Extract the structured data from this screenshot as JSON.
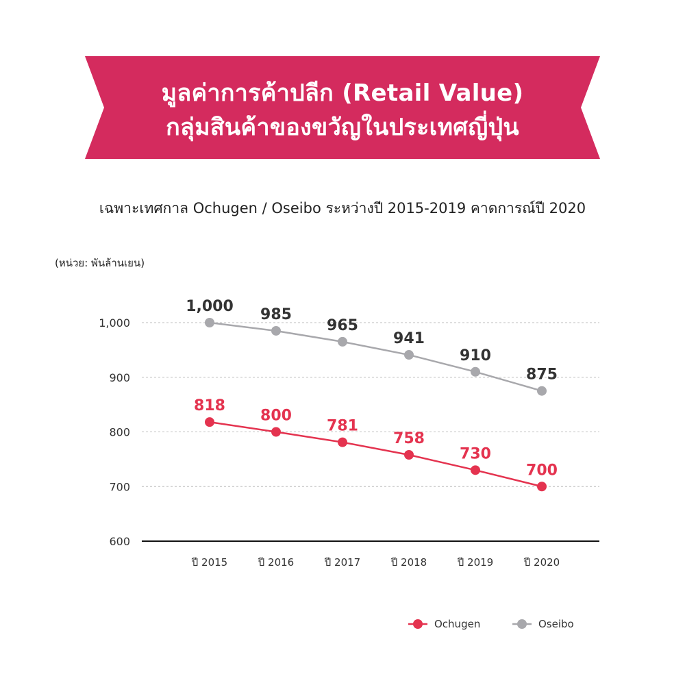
{
  "title_lines": [
    "มูลค่าการค้าปลีก (Retail Value)",
    "กลุ่มสินค้าของขวัญในประเทศญี่ปุ่น"
  ],
  "subtitle": "เฉพาะเทศกาล Ochugen / Oseibo ระหว่างปี 2015-2019 คาดการณ์ปี 2020",
  "unit_label": "(หน่วย: พันล้านเยน)",
  "colors": {
    "banner": "#d42b5e",
    "ochugen": "#e4334f",
    "oseibo": "#a8a8ac",
    "oseibo_label": "#333333"
  },
  "chart_data": {
    "type": "line",
    "categories": [
      "ปี 2015",
      "ปี 2016",
      "ปี 2017",
      "ปี 2018",
      "ปี 2019",
      "ปี 2020"
    ],
    "ylim": [
      600,
      1000
    ],
    "yticks": [
      600,
      700,
      800,
      900,
      1000
    ],
    "ytick_labels": [
      "600",
      "700",
      "800",
      "900",
      "1,000"
    ],
    "grid": true,
    "legend_position": "bottom-right",
    "series": [
      {
        "name": "Ochugen",
        "values": [
          818,
          800,
          781,
          758,
          730,
          700
        ],
        "labels": [
          "818",
          "800",
          "781",
          "758",
          "730",
          "700"
        ]
      },
      {
        "name": "Oseibo",
        "values": [
          1000,
          985,
          965,
          941,
          910,
          875
        ],
        "labels": [
          "1,000",
          "985",
          "965",
          "941",
          "910",
          "875"
        ]
      }
    ]
  }
}
